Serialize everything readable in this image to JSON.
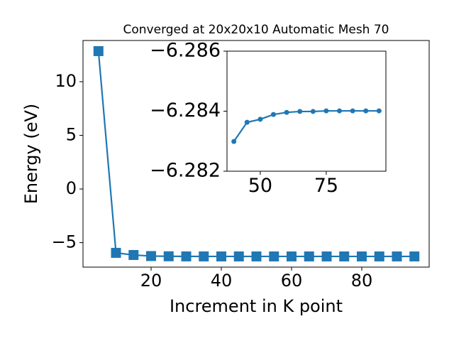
{
  "chart_data": [
    {
      "type": "line",
      "marker": "square",
      "title": "Converged at 20x20x10 Automatic Mesh 70",
      "x_label": "Increment in K point",
      "y_label": "Energy (eV)",
      "x": [
        5,
        10,
        15,
        20,
        25,
        30,
        35,
        40,
        45,
        50,
        55,
        60,
        65,
        70,
        75,
        80,
        85,
        90,
        95
      ],
      "series": [
        {
          "color": "#1f77b4",
          "values": [
            12.85,
            -5.95,
            -6.15,
            -6.25,
            -6.27,
            -6.28,
            -6.282,
            -6.283,
            -6.2836,
            -6.2837,
            -6.2839,
            -6.284,
            -6.284,
            -6.284,
            -6.284,
            -6.284,
            -6.284,
            -6.284,
            -6.284
          ]
        }
      ],
      "xlim": [
        0.6,
        99.2
      ],
      "ylim": [
        -7.28,
        13.84
      ],
      "xticks": [
        20,
        40,
        60,
        80
      ],
      "yticks": [
        {
          "value": -5,
          "label": "−5"
        },
        0,
        5,
        10
      ]
    },
    {
      "type": "line",
      "marker": "circle",
      "x": [
        40,
        45,
        50,
        55,
        60,
        65,
        70,
        75,
        80,
        85,
        90,
        95
      ],
      "series": [
        {
          "color": "#1f77b4",
          "values": [
            -6.28299,
            -6.28363,
            -6.28373,
            -6.28389,
            -6.28396,
            -6.28399,
            -6.28399,
            -6.28401,
            -6.28401,
            -6.28401,
            -6.28401,
            -6.28401
          ]
        }
      ],
      "xlim": [
        37.4,
        97.6
      ],
      "ylim": [
        -6.282,
        -6.286
      ],
      "xticks": [
        50,
        75
      ],
      "yticks": [
        {
          "value": -6.282,
          "label": "−6.282"
        },
        {
          "value": -6.284,
          "label": "−6.284"
        },
        {
          "value": -6.286,
          "label": "−6.286"
        }
      ]
    }
  ]
}
